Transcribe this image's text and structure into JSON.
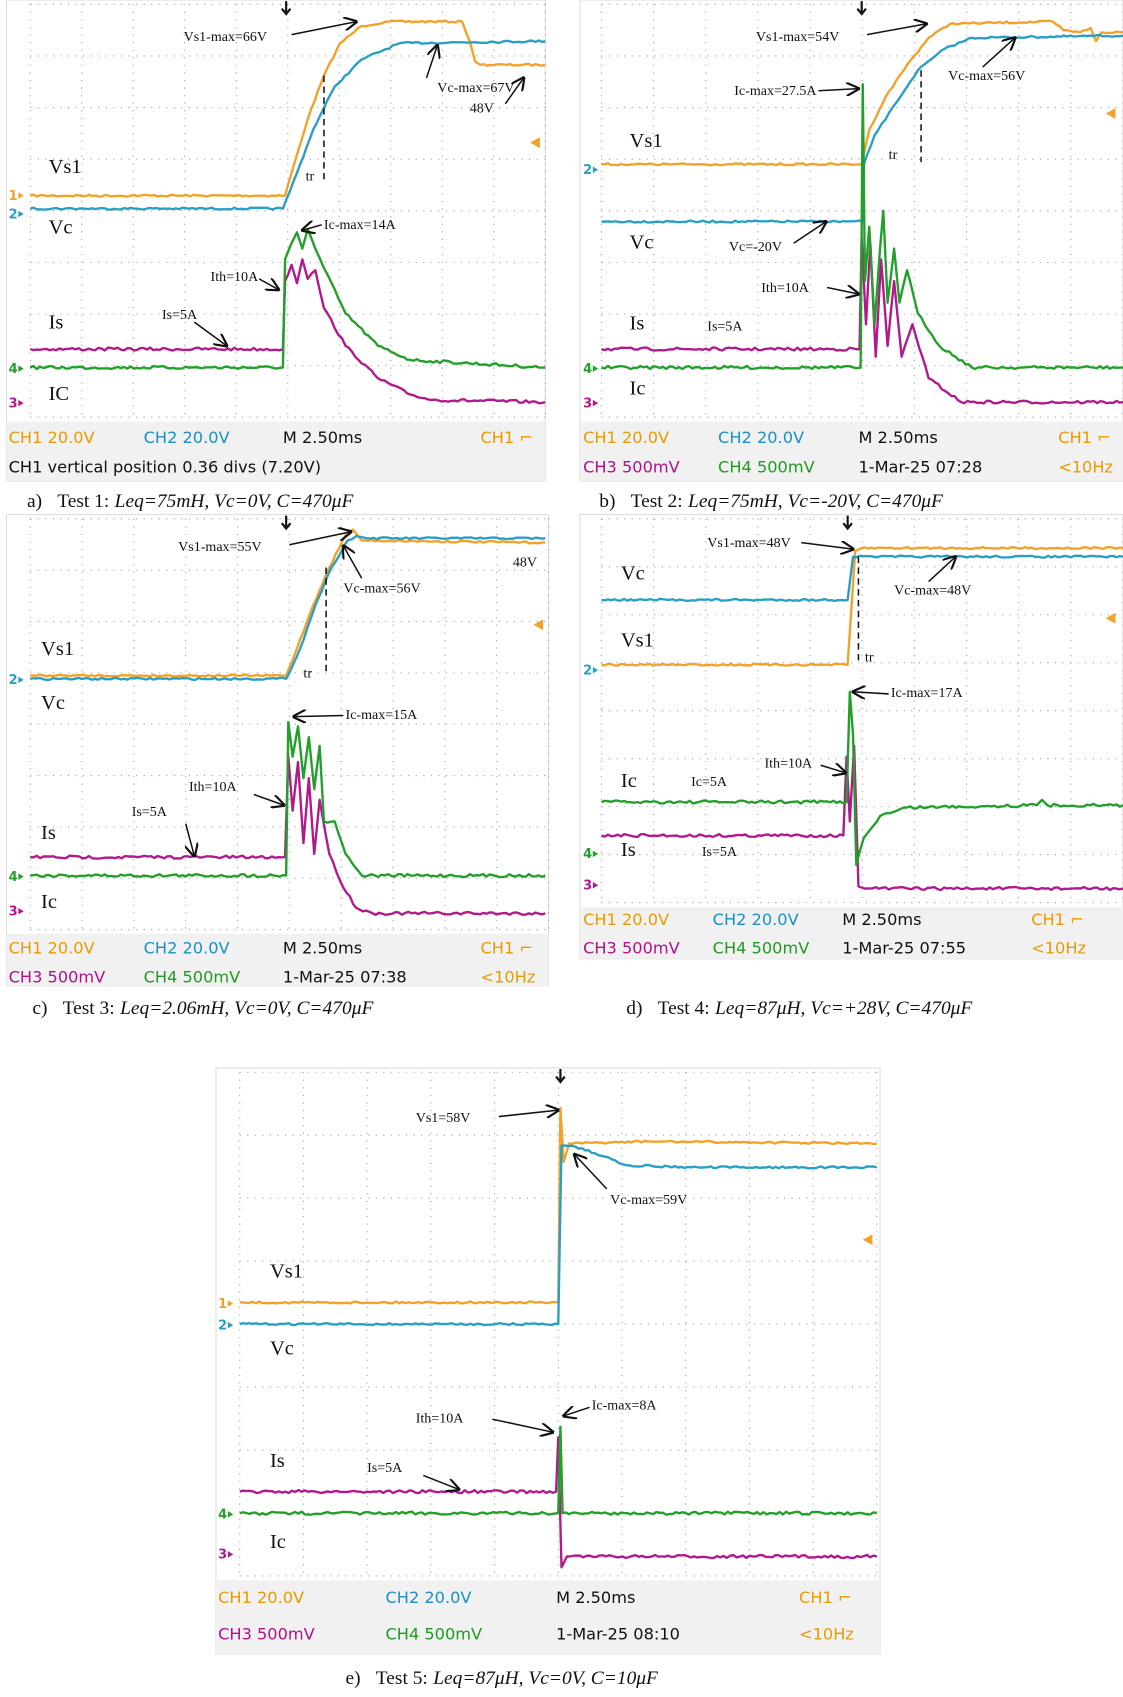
{
  "panels": [
    {
      "trace_labels": [
        "Vs1",
        "Vc",
        "Is",
        "IC"
      ],
      "annotations": [
        "Vs1-max=66V",
        "Vc-max=67V",
        "48V",
        "Ic-max=14A",
        "Ith=10A",
        "Is=5A",
        "tr"
      ],
      "markers": [
        "1",
        "2",
        "4",
        "3"
      ],
      "status": [
        [
          {
            "text": "CH1  20.0V",
            "color": "#e89a00"
          },
          {
            "text": "CH2  20.0V",
            "color": "#1b8fc4"
          },
          {
            "text": "M 2.50ms",
            "color": "#111111"
          },
          {
            "text": "CH1 ⌐",
            "color": "#e89a00"
          }
        ],
        [
          {
            "text": "CH1 vertical position 0.36 divs (7.20V)",
            "color": "#111111"
          }
        ]
      ],
      "caption": {
        "label": "a)",
        "test": "Test 1:",
        "params": "Leq=75mH, Vc=0V, C=470μF"
      }
    },
    {
      "trace_labels": [
        "Vs1",
        "Vc",
        "Is",
        "Ic"
      ],
      "annotations": [
        "Vs1-max=54V",
        "Vc-max=56V",
        "Ic-max=27.5A",
        "Vc=-20V",
        "Ith=10A",
        "Is=5A",
        "tr"
      ],
      "markers": [
        "2",
        "4",
        "3"
      ],
      "status": [
        [
          {
            "text": "CH1  20.0V",
            "color": "#e89a00"
          },
          {
            "text": "CH2  20.0V",
            "color": "#1b8fc4"
          },
          {
            "text": "M 2.50ms",
            "color": "#111111"
          },
          {
            "text": "CH1 ⌐",
            "color": "#e89a00"
          }
        ],
        [
          {
            "text": "CH3  500mV",
            "color": "#b0108c"
          },
          {
            "text": "CH4  500mV",
            "color": "#1f9a1f"
          },
          {
            "text": "1-Mar-25 07:28",
            "color": "#111111"
          },
          {
            "text": "<10Hz",
            "color": "#e89a00"
          }
        ]
      ],
      "caption": {
        "label": "b)",
        "test": "Test 2:",
        "params": "Leq=75mH, Vc=-20V, C=470μF"
      }
    },
    {
      "trace_labels": [
        "Vs1",
        "Vc",
        "Is",
        "Ic"
      ],
      "annotations": [
        "Vs1-max=55V",
        "Vc-max=56V",
        "48V",
        "Ic-max=15A",
        "Ith=10A",
        "Is=5A",
        "tr"
      ],
      "markers": [
        "2",
        "4",
        "3"
      ],
      "status": [
        [
          {
            "text": "CH1  20.0V",
            "color": "#e89a00"
          },
          {
            "text": "CH2  20.0V",
            "color": "#1b8fc4"
          },
          {
            "text": "M 2.50ms",
            "color": "#111111"
          },
          {
            "text": "CH1 ⌐",
            "color": "#e89a00"
          }
        ],
        [
          {
            "text": "CH3  500mV",
            "color": "#b0108c"
          },
          {
            "text": "CH4  500mV",
            "color": "#1f9a1f"
          },
          {
            "text": "1-Mar-25 07:38",
            "color": "#111111"
          },
          {
            "text": "<10Hz",
            "color": "#e89a00"
          }
        ]
      ],
      "caption": {
        "label": "c)",
        "test": "Test 3:",
        "params": "Leq=2.06mH, Vc=0V, C=470μF"
      }
    },
    {
      "trace_labels": [
        "Vc",
        "Vs1",
        "Ic",
        "Is"
      ],
      "annotations": [
        "Vs1-max=48V",
        "Vc-max=48V",
        "Ic-max=17A",
        "Ith=10A",
        "Ic=5A",
        "Is=5A",
        "tr"
      ],
      "markers": [
        "2",
        "4",
        "3"
      ],
      "status": [
        [
          {
            "text": "CH1  20.0V",
            "color": "#e89a00"
          },
          {
            "text": "CH2  20.0V",
            "color": "#1b8fc4"
          },
          {
            "text": "M 2.50ms",
            "color": "#111111"
          },
          {
            "text": "CH1 ⌐",
            "color": "#e89a00"
          }
        ],
        [
          {
            "text": "CH3  500mV",
            "color": "#b0108c"
          },
          {
            "text": "CH4  500mV",
            "color": "#1f9a1f"
          },
          {
            "text": "1-Mar-25 07:55",
            "color": "#111111"
          },
          {
            "text": "<10Hz",
            "color": "#e89a00"
          }
        ]
      ],
      "caption": {
        "label": "d)",
        "test": "Test 4:",
        "params": "Leq=87μH, Vc=+28V, C=470μF"
      }
    },
    {
      "trace_labels": [
        "Vs1",
        "Vc",
        "Is",
        "Ic"
      ],
      "annotations": [
        "Vs1=58V",
        "Vc-max=59V",
        "Ic-max=8A",
        "Ith=10A",
        "Is=5A"
      ],
      "markers": [
        "1",
        "2",
        "4",
        "3"
      ],
      "status": [
        [
          {
            "text": "CH1  20.0V",
            "color": "#e89a00"
          },
          {
            "text": "CH2  20.0V",
            "color": "#1b8fc4"
          },
          {
            "text": "M 2.50ms",
            "color": "#111111"
          },
          {
            "text": "CH1 ⌐",
            "color": "#e89a00"
          }
        ],
        [
          {
            "text": "CH3  500mV",
            "color": "#b0108c"
          },
          {
            "text": "CH4  500mV",
            "color": "#1f9a1f"
          },
          {
            "text": "1-Mar-25 08:10",
            "color": "#111111"
          },
          {
            "text": "<10Hz",
            "color": "#e89a00"
          }
        ]
      ],
      "caption": {
        "label": "e)",
        "test": "Test 5:",
        "params": "Leq=87μH, Vc=0V, C=10μF"
      }
    }
  ]
}
